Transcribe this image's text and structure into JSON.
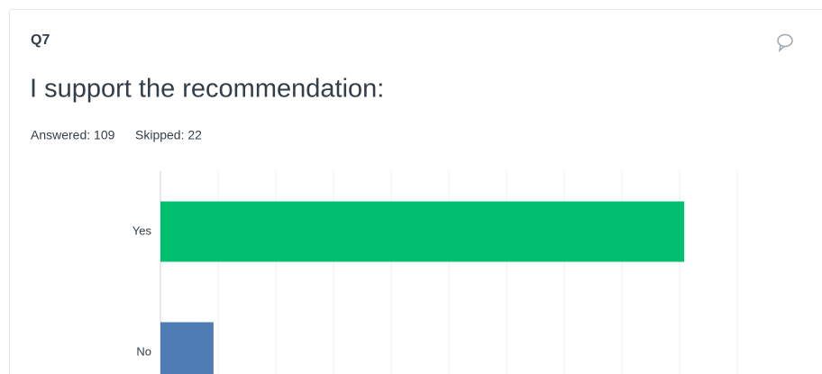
{
  "question": {
    "number": "Q7",
    "title": "I support the recommendation:",
    "answered": "Answered: 109",
    "skipped": "Skipped: 22"
  },
  "chart_data": {
    "type": "hbar",
    "categories": [
      "Yes",
      "No"
    ],
    "values": [
      90.8,
      9.2
    ],
    "colors": [
      "#00bf6f",
      "#507cb6"
    ],
    "xlim": [
      0,
      100
    ],
    "xticks": [
      0,
      10,
      20,
      30,
      40,
      50,
      60,
      70,
      80,
      90,
      100
    ],
    "grid": true
  }
}
